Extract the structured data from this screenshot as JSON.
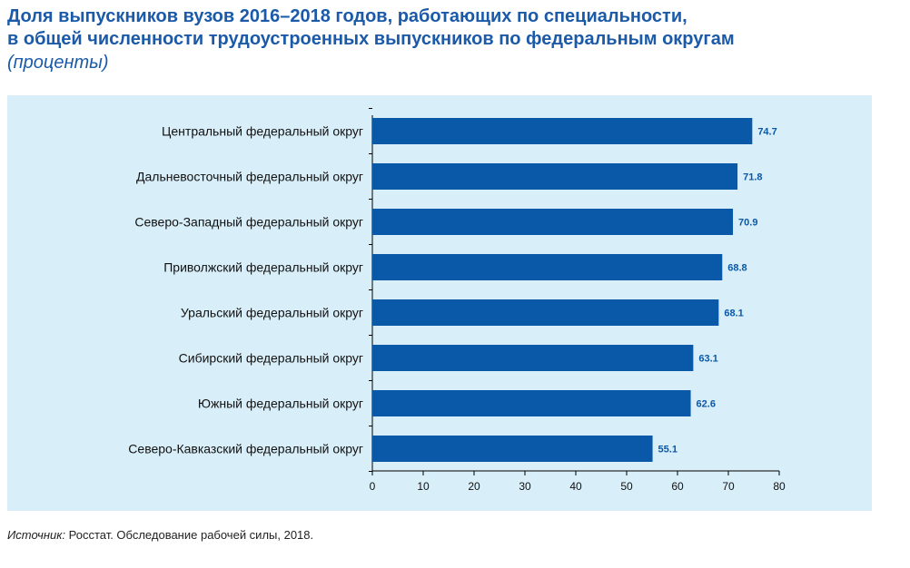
{
  "title": {
    "line1": "Доля выпускников вузов 2016–2018 годов, работающих по специальности,",
    "line2": "в общей численности трудоустроенных выпускников по федеральным округам",
    "subtitle": "(проценты)"
  },
  "source": {
    "label": "Источник:",
    "text": " Росстат. Обследование рабочей силы, 2018."
  },
  "colors": {
    "bar": "#0a58a8",
    "panel": "#d8eef9",
    "title": "#1a5aa8",
    "value_label": "#0a58a8"
  },
  "chart_data": {
    "type": "bar",
    "orientation": "horizontal",
    "categories": [
      "Центральный федеральный округ",
      "Дальневосточный федеральный округ",
      "Северо-Западный федеральный округ",
      "Приволжский федеральный округ",
      "Уральский федеральный округ",
      "Сибирский федеральный округ",
      "Южный федеральный округ",
      "Северо-Кавказский федеральный округ"
    ],
    "values": [
      74.7,
      71.8,
      70.9,
      68.8,
      68.1,
      63.1,
      62.6,
      55.1
    ],
    "value_labels": [
      "74.7",
      "71.8",
      "70.9",
      "68.8",
      "68.1",
      "63.1",
      "62.6",
      "55.1"
    ],
    "xlim": [
      0,
      80
    ],
    "xticks": [
      0,
      10,
      20,
      30,
      40,
      50,
      60,
      70,
      80
    ],
    "grid": false
  }
}
